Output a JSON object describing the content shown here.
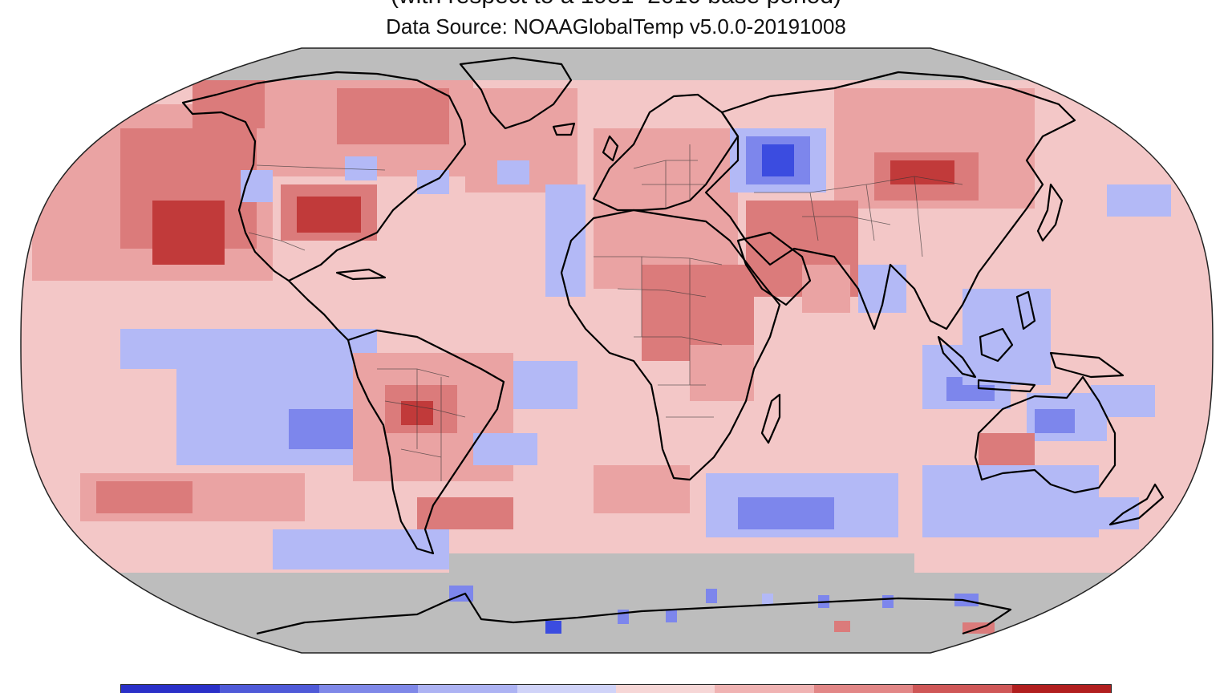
{
  "header": {
    "title_partial": "(with respect to a 1981–2010 base period)",
    "data_source": "Data Source: NOAAGlobalTemp v5.0.0-20191008"
  },
  "map": {
    "projection": "Robinson",
    "ocean_fill": "#f3c7c7",
    "no_data_fill": "#bdbdbd",
    "coastline_color": "#000000",
    "anomaly_classes": [
      {
        "name": "much-colder",
        "color": "#3b4ce0"
      },
      {
        "name": "colder",
        "color": "#7d86ec"
      },
      {
        "name": "cool",
        "color": "#b3b9f6"
      },
      {
        "name": "near-warm",
        "color": "#f5c5c5"
      },
      {
        "name": "warm",
        "color": "#eaa3a3"
      },
      {
        "name": "warmer",
        "color": "#db7b7b"
      },
      {
        "name": "much-warmer",
        "color": "#c13a3a"
      }
    ]
  },
  "colorbar": {
    "colors": [
      "#2a30c8",
      "#4f5ad8",
      "#7f88e8",
      "#adb3f3",
      "#d0d3f8",
      "#f6d6d6",
      "#f0b3b3",
      "#e28787",
      "#cf5757",
      "#b11f1f"
    ]
  }
}
